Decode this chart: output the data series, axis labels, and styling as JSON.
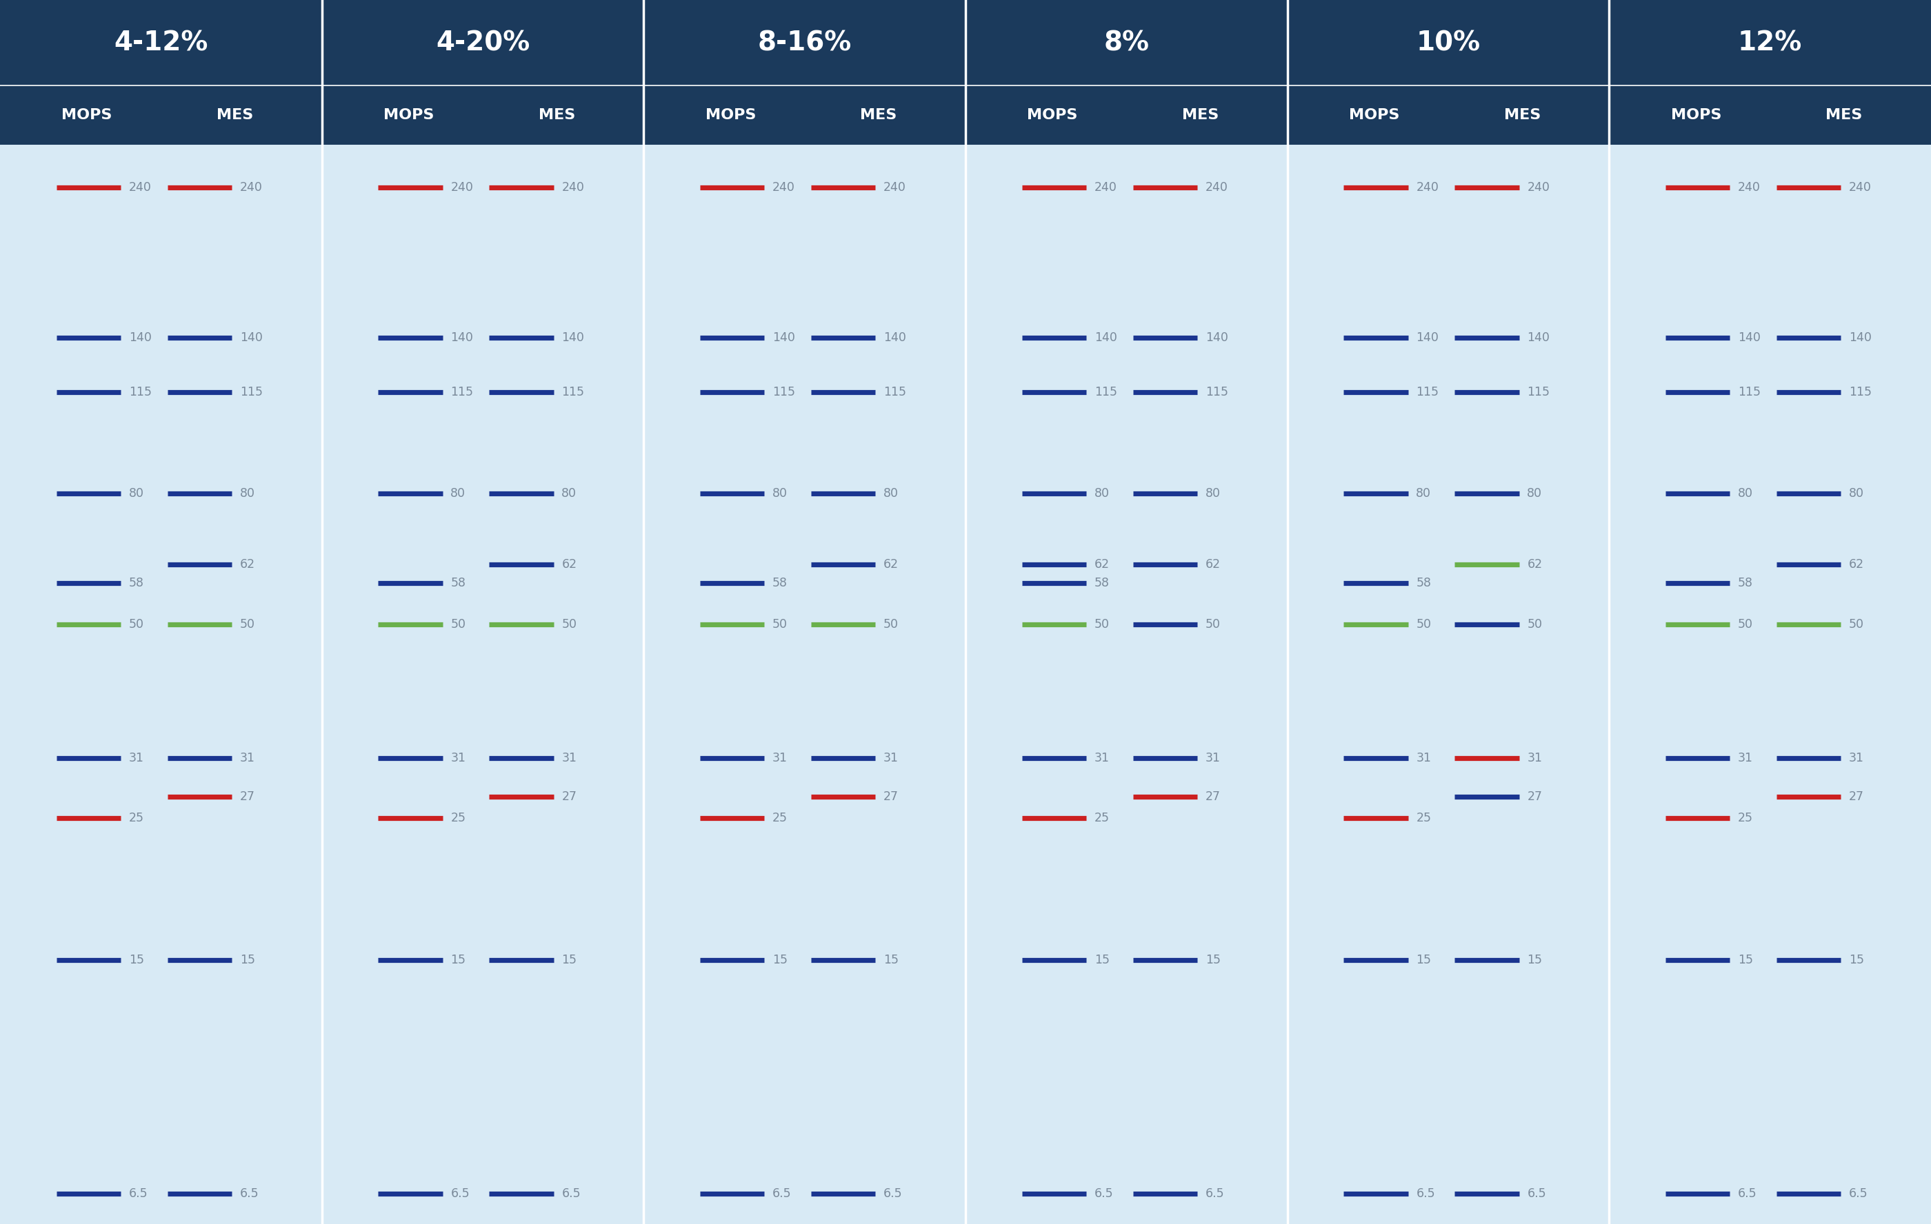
{
  "title_bg": "#1b3a5c",
  "body_bg": "#d8eaf5",
  "title_color": "#ffffff",
  "label_color": "#7a8a9a",
  "colors": {
    "red": "#cc2020",
    "blue": "#1a3590",
    "green": "#6ab04c"
  },
  "columns": [
    {
      "title": "4-12%",
      "mops": [
        {
          "val": 240,
          "color": "red"
        },
        {
          "val": 140,
          "color": "blue"
        },
        {
          "val": 115,
          "color": "blue"
        },
        {
          "val": 80,
          "color": "blue"
        },
        {
          "val": 58,
          "color": "blue"
        },
        {
          "val": 50,
          "color": "green"
        },
        {
          "val": 31,
          "color": "blue"
        },
        {
          "val": 25,
          "color": "red"
        },
        {
          "val": 15,
          "color": "blue"
        },
        {
          "val": 6.5,
          "color": "blue"
        }
      ],
      "mes": [
        {
          "val": 240,
          "color": "red"
        },
        {
          "val": 140,
          "color": "blue"
        },
        {
          "val": 115,
          "color": "blue"
        },
        {
          "val": 80,
          "color": "blue"
        },
        {
          "val": 62,
          "color": "blue"
        },
        {
          "val": 50,
          "color": "green"
        },
        {
          "val": 31,
          "color": "blue"
        },
        {
          "val": 27,
          "color": "red"
        },
        {
          "val": 15,
          "color": "blue"
        },
        {
          "val": 6.5,
          "color": "blue"
        }
      ]
    },
    {
      "title": "4-20%",
      "mops": [
        {
          "val": 240,
          "color": "red"
        },
        {
          "val": 140,
          "color": "blue"
        },
        {
          "val": 115,
          "color": "blue"
        },
        {
          "val": 80,
          "color": "blue"
        },
        {
          "val": 58,
          "color": "blue"
        },
        {
          "val": 50,
          "color": "green"
        },
        {
          "val": 31,
          "color": "blue"
        },
        {
          "val": 25,
          "color": "red"
        },
        {
          "val": 15,
          "color": "blue"
        },
        {
          "val": 6.5,
          "color": "blue"
        }
      ],
      "mes": [
        {
          "val": 240,
          "color": "red"
        },
        {
          "val": 140,
          "color": "blue"
        },
        {
          "val": 115,
          "color": "blue"
        },
        {
          "val": 80,
          "color": "blue"
        },
        {
          "val": 62,
          "color": "blue"
        },
        {
          "val": 50,
          "color": "green"
        },
        {
          "val": 31,
          "color": "blue"
        },
        {
          "val": 27,
          "color": "red"
        },
        {
          "val": 15,
          "color": "blue"
        },
        {
          "val": 6.5,
          "color": "blue"
        }
      ]
    },
    {
      "title": "8-16%",
      "mops": [
        {
          "val": 240,
          "color": "red"
        },
        {
          "val": 140,
          "color": "blue"
        },
        {
          "val": 115,
          "color": "blue"
        },
        {
          "val": 80,
          "color": "blue"
        },
        {
          "val": 58,
          "color": "blue"
        },
        {
          "val": 50,
          "color": "green"
        },
        {
          "val": 31,
          "color": "blue"
        },
        {
          "val": 25,
          "color": "red"
        },
        {
          "val": 15,
          "color": "blue"
        },
        {
          "val": 6.5,
          "color": "blue"
        }
      ],
      "mes": [
        {
          "val": 240,
          "color": "red"
        },
        {
          "val": 140,
          "color": "blue"
        },
        {
          "val": 115,
          "color": "blue"
        },
        {
          "val": 80,
          "color": "blue"
        },
        {
          "val": 62,
          "color": "blue"
        },
        {
          "val": 50,
          "color": "green"
        },
        {
          "val": 31,
          "color": "blue"
        },
        {
          "val": 27,
          "color": "red"
        },
        {
          "val": 15,
          "color": "blue"
        },
        {
          "val": 6.5,
          "color": "blue"
        }
      ]
    },
    {
      "title": "8%",
      "mops": [
        {
          "val": 240,
          "color": "red"
        },
        {
          "val": 140,
          "color": "blue"
        },
        {
          "val": 115,
          "color": "blue"
        },
        {
          "val": 80,
          "color": "blue"
        },
        {
          "val": 62,
          "color": "blue"
        },
        {
          "val": 58,
          "color": "blue"
        },
        {
          "val": 50,
          "color": "green"
        },
        {
          "val": 31,
          "color": "blue"
        },
        {
          "val": 25,
          "color": "red"
        },
        {
          "val": 15,
          "color": "blue"
        },
        {
          "val": 6.5,
          "color": "blue"
        }
      ],
      "mes": [
        {
          "val": 240,
          "color": "red"
        },
        {
          "val": 140,
          "color": "blue"
        },
        {
          "val": 115,
          "color": "blue"
        },
        {
          "val": 80,
          "color": "blue"
        },
        {
          "val": 62,
          "color": "blue"
        },
        {
          "val": 50,
          "color": "blue"
        },
        {
          "val": 31,
          "color": "blue"
        },
        {
          "val": 27,
          "color": "red"
        },
        {
          "val": 15,
          "color": "blue"
        },
        {
          "val": 6.5,
          "color": "blue"
        }
      ]
    },
    {
      "title": "10%",
      "mops": [
        {
          "val": 240,
          "color": "red"
        },
        {
          "val": 140,
          "color": "blue"
        },
        {
          "val": 115,
          "color": "blue"
        },
        {
          "val": 80,
          "color": "blue"
        },
        {
          "val": 58,
          "color": "blue"
        },
        {
          "val": 50,
          "color": "green"
        },
        {
          "val": 31,
          "color": "blue"
        },
        {
          "val": 25,
          "color": "red"
        },
        {
          "val": 15,
          "color": "blue"
        },
        {
          "val": 6.5,
          "color": "blue"
        }
      ],
      "mes": [
        {
          "val": 240,
          "color": "red"
        },
        {
          "val": 140,
          "color": "blue"
        },
        {
          "val": 115,
          "color": "blue"
        },
        {
          "val": 80,
          "color": "blue"
        },
        {
          "val": 62,
          "color": "green"
        },
        {
          "val": 50,
          "color": "blue"
        },
        {
          "val": 31,
          "color": "red"
        },
        {
          "val": 27,
          "color": "blue"
        },
        {
          "val": 15,
          "color": "blue"
        },
        {
          "val": 6.5,
          "color": "blue"
        }
      ]
    },
    {
      "title": "12%",
      "mops": [
        {
          "val": 240,
          "color": "red"
        },
        {
          "val": 140,
          "color": "blue"
        },
        {
          "val": 115,
          "color": "blue"
        },
        {
          "val": 80,
          "color": "blue"
        },
        {
          "val": 58,
          "color": "blue"
        },
        {
          "val": 50,
          "color": "green"
        },
        {
          "val": 31,
          "color": "blue"
        },
        {
          "val": 25,
          "color": "red"
        },
        {
          "val": 15,
          "color": "blue"
        },
        {
          "val": 6.5,
          "color": "blue"
        }
      ],
      "mes": [
        {
          "val": 240,
          "color": "red"
        },
        {
          "val": 140,
          "color": "blue"
        },
        {
          "val": 115,
          "color": "blue"
        },
        {
          "val": 80,
          "color": "blue"
        },
        {
          "val": 62,
          "color": "blue"
        },
        {
          "val": 50,
          "color": "green"
        },
        {
          "val": 31,
          "color": "blue"
        },
        {
          "val": 27,
          "color": "red"
        },
        {
          "val": 15,
          "color": "blue"
        },
        {
          "val": 6.5,
          "color": "blue"
        }
      ]
    }
  ]
}
